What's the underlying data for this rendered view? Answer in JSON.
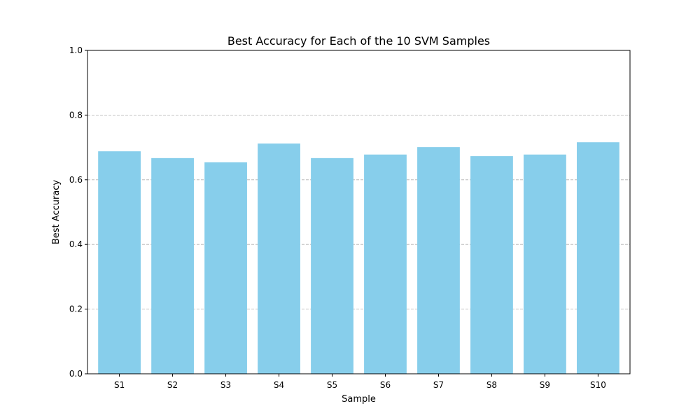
{
  "chart_data": {
    "type": "bar",
    "title": "Best Accuracy for Each of the 10 SVM Samples",
    "xlabel": "Sample",
    "ylabel": "Best Accuracy",
    "categories": [
      "S1",
      "S2",
      "S3",
      "S4",
      "S5",
      "S6",
      "S7",
      "S8",
      "S9",
      "S10"
    ],
    "values": [
      0.688,
      0.667,
      0.654,
      0.712,
      0.667,
      0.678,
      0.701,
      0.673,
      0.678,
      0.716
    ],
    "ylim": [
      0,
      1.0
    ],
    "yticks": [
      0.0,
      0.2,
      0.4,
      0.6,
      0.8,
      1.0
    ],
    "ytick_labels": [
      "0.0",
      "0.2",
      "0.4",
      "0.6",
      "0.8",
      "1.0"
    ],
    "grid": "y-dashed",
    "bar_color": "#87ceeb",
    "grid_color": "#b0b0b0"
  }
}
